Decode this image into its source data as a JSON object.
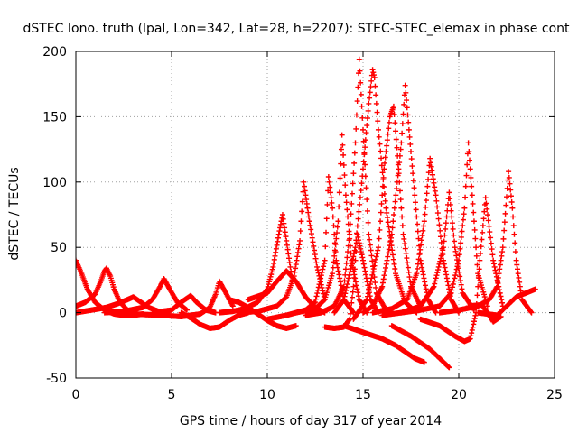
{
  "chart_data": {
    "type": "scatter",
    "title": "dSTEC Iono. truth (lpal, Lon=342, Lat=28, h=2207): STEC-STEC_elemax in phase cont",
    "xlabel": "GPS time / hours of day 317 of year 2014",
    "ylabel": "dSTEC  / TECUs",
    "xlim": [
      0,
      25
    ],
    "ylim": [
      -50,
      200
    ],
    "xticks": [
      0,
      5,
      10,
      15,
      20,
      25
    ],
    "yticks": [
      -50,
      0,
      50,
      100,
      150,
      200
    ],
    "xtick_labels": [
      "0",
      "5",
      "10",
      "15",
      "20",
      "25"
    ],
    "ytick_labels": [
      "-50",
      "0",
      "50",
      "100",
      "150",
      "200"
    ],
    "grid": true,
    "marker": "+",
    "color": "#ff0000",
    "series": [
      {
        "x": [
          0.0,
          0.3,
          0.6,
          1.0,
          1.5,
          2.0,
          2.5,
          3.0,
          3.5
        ],
        "y": [
          40,
          30,
          18,
          8,
          2,
          -1,
          -2,
          -2,
          -1
        ]
      },
      {
        "x": [
          0.0,
          0.5,
          1.0,
          1.3,
          1.5,
          1.6,
          1.8,
          2.0,
          2.3,
          2.7,
          3.2
        ],
        "y": [
          5,
          8,
          14,
          24,
          32,
          34,
          28,
          18,
          8,
          2,
          0
        ]
      },
      {
        "x": [
          0.0,
          0.8,
          1.6,
          2.2,
          2.7,
          3.0,
          3.3,
          3.8,
          4.5
        ],
        "y": [
          0,
          2,
          4,
          7,
          10,
          12,
          9,
          4,
          0
        ]
      },
      {
        "x": [
          1.5,
          2.5,
          3.5,
          4.0,
          4.4,
          4.6,
          4.9,
          5.3,
          5.8
        ],
        "y": [
          0,
          1,
          4,
          10,
          20,
          26,
          18,
          8,
          2
        ]
      },
      {
        "x": [
          4.0,
          5.0,
          5.5,
          5.8,
          6.0,
          6.3,
          6.8,
          7.3
        ],
        "y": [
          0,
          2,
          8,
          11,
          13,
          8,
          2,
          0
        ]
      },
      {
        "x": [
          3.0,
          4.5,
          5.5,
          6.5,
          7.0,
          7.3,
          7.5,
          7.8,
          8.2
        ],
        "y": [
          -1,
          -2,
          -3,
          -1,
          4,
          14,
          24,
          16,
          5
        ]
      },
      {
        "x": [
          5.5,
          6.0,
          6.5,
          7.0,
          7.5,
          8.0,
          8.5,
          9.0
        ],
        "y": [
          0,
          -4,
          -9,
          -12,
          -11,
          -6,
          -2,
          0
        ]
      },
      {
        "x": [
          7.5,
          8.2,
          8.8,
          9.5,
          10.0,
          10.3,
          10.6,
          10.8,
          11.0,
          11.3
        ],
        "y": [
          0,
          1,
          3,
          8,
          18,
          35,
          60,
          75,
          55,
          25
        ]
      },
      {
        "x": [
          8.0,
          8.5,
          9.0,
          9.5,
          10.0,
          10.5,
          11.0,
          11.5
        ],
        "y": [
          10,
          8,
          4,
          -1,
          -6,
          -10,
          -12,
          -10
        ]
      },
      {
        "x": [
          8.5,
          9.5,
          10.5,
          11.0,
          11.4,
          11.7,
          11.9,
          12.2,
          12.6,
          13.0
        ],
        "y": [
          0,
          1,
          5,
          12,
          28,
          55,
          100,
          70,
          35,
          10
        ]
      },
      {
        "x": [
          9.0,
          10.0,
          10.5,
          11.0,
          11.5,
          12.0,
          12.5,
          13.0
        ],
        "y": [
          10,
          15,
          24,
          32,
          24,
          12,
          4,
          0
        ]
      },
      {
        "x": [
          10.0,
          11.0,
          12.0,
          12.5,
          13.0,
          13.2,
          13.4,
          13.6,
          14.0,
          14.5
        ],
        "y": [
          -5,
          -2,
          2,
          8,
          40,
          104,
          80,
          40,
          10,
          0
        ]
      },
      {
        "x": [
          11.5,
          12.5,
          13.0,
          13.4,
          13.7,
          13.9,
          14.1,
          14.4,
          14.8,
          15.2
        ],
        "y": [
          0,
          3,
          10,
          30,
          70,
          136,
          90,
          40,
          10,
          0
        ]
      },
      {
        "x": [
          12.0,
          12.8,
          13.5,
          14.0,
          14.3,
          14.6,
          14.8,
          15.0,
          15.3,
          15.7,
          16.2
        ],
        "y": [
          -2,
          0,
          5,
          20,
          60,
          130,
          194,
          140,
          60,
          15,
          2
        ]
      },
      {
        "x": [
          13.0,
          13.5,
          14.0,
          14.3,
          14.5,
          14.7,
          15.0,
          15.4,
          15.8
        ],
        "y": [
          -11,
          -12,
          -11,
          -5,
          20,
          60,
          40,
          10,
          0
        ]
      },
      {
        "x": [
          13.5,
          14.0,
          14.6,
          15.0,
          15.3,
          15.5,
          15.6,
          15.8,
          16.2,
          16.7,
          17.2,
          17.8
        ],
        "y": [
          0,
          10,
          50,
          110,
          160,
          186,
          180,
          140,
          80,
          30,
          8,
          0
        ]
      },
      {
        "x": [
          14.5,
          15.2,
          15.8,
          16.1,
          16.4,
          16.6,
          16.8,
          17.1,
          17.5,
          18.0
        ],
        "y": [
          -5,
          10,
          50,
          110,
          150,
          158,
          120,
          60,
          20,
          5
        ]
      },
      {
        "x": [
          15.0,
          15.5,
          16.0,
          16.5,
          17.0,
          17.2,
          17.4,
          17.7,
          18.0,
          18.4,
          18.8
        ],
        "y": [
          0,
          5,
          20,
          60,
          130,
          174,
          140,
          90,
          40,
          10,
          0
        ]
      },
      {
        "x": [
          14.0,
          15.0,
          16.0,
          16.7,
          17.2,
          17.7,
          18.2
        ],
        "y": [
          -10,
          -15,
          -20,
          -25,
          -30,
          -35,
          -38
        ]
      },
      {
        "x": [
          15.5,
          16.5,
          17.3,
          17.8,
          18.2,
          18.5,
          18.8,
          19.2,
          19.6,
          20.0
        ],
        "y": [
          0,
          3,
          10,
          30,
          70,
          118,
          90,
          40,
          10,
          0
        ]
      },
      {
        "x": [
          16.0,
          17.0,
          18.0,
          18.7,
          19.2,
          19.5,
          19.8,
          20.2,
          20.8
        ],
        "y": [
          -2,
          0,
          5,
          20,
          50,
          92,
          50,
          15,
          2
        ]
      },
      {
        "x": [
          16.5,
          17.5,
          18.5,
          19.0,
          19.5
        ],
        "y": [
          -10,
          -18,
          -28,
          -35,
          -42
        ]
      },
      {
        "x": [
          17.0,
          18.0,
          19.0,
          19.6,
          20.0,
          20.3,
          20.5,
          20.7,
          21.0,
          21.5
        ],
        "y": [
          0,
          2,
          5,
          15,
          40,
          80,
          130,
          90,
          30,
          5
        ]
      },
      {
        "x": [
          18.0,
          19.0,
          19.8,
          20.3,
          20.6,
          20.9,
          21.1,
          21.4,
          21.8,
          22.3
        ],
        "y": [
          -5,
          -10,
          -18,
          -22,
          -20,
          0,
          40,
          88,
          40,
          5
        ]
      },
      {
        "x": [
          19.0,
          20.0,
          21.0,
          21.6,
          22.0,
          22.3,
          22.6,
          22.8,
          23.0,
          23.3,
          23.8
        ],
        "y": [
          0,
          2,
          5,
          10,
          20,
          50,
          108,
          80,
          40,
          10,
          0
        ]
      },
      {
        "x": [
          20.5,
          21.2,
          21.5,
          21.8,
          22.2
        ],
        "y": [
          5,
          6,
          0,
          -7,
          -3
        ]
      },
      {
        "x": [
          21.0,
          22.0,
          22.5,
          23.0,
          23.5,
          24.0
        ],
        "y": [
          0,
          -2,
          5,
          12,
          15,
          18
        ]
      }
    ]
  }
}
